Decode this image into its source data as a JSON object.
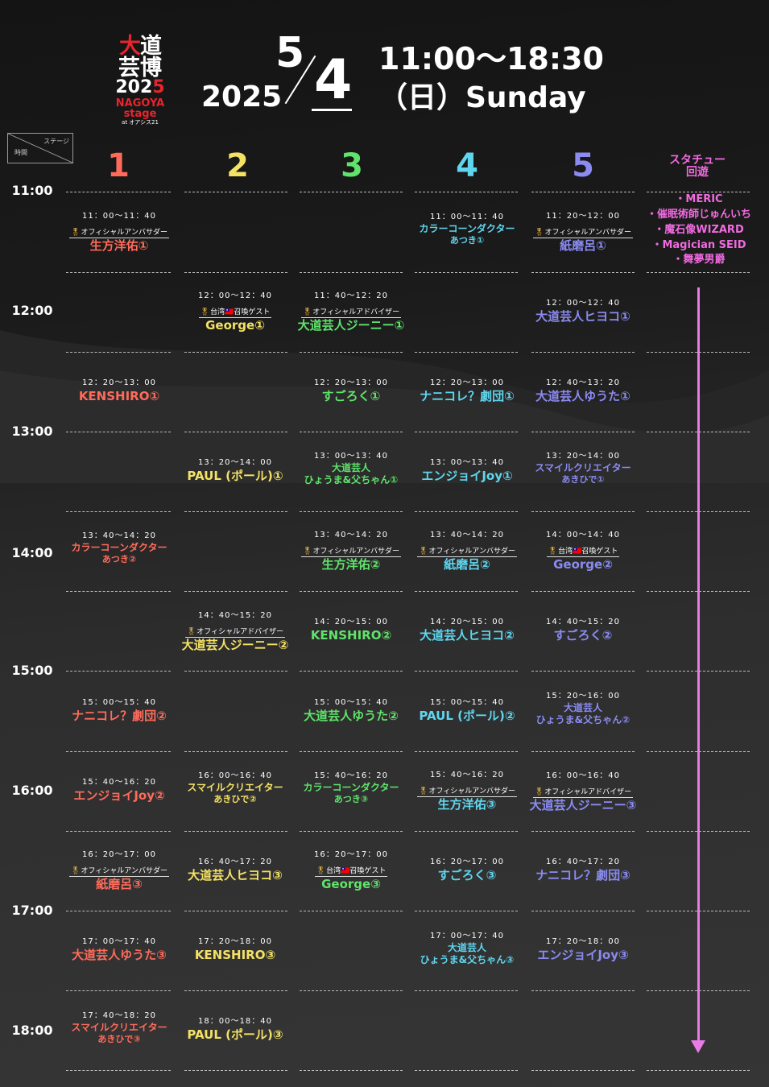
{
  "header": {
    "logo_line1_red": "大",
    "logo_line1_white": "道",
    "logo_line2": "芸博",
    "logo_line3_a": "202",
    "logo_line3_b": "5",
    "logo_line4": "NAGOYA stage",
    "logo_line5": "at オアシス21",
    "year": "2025",
    "month": "5",
    "day": "4",
    "hours": "11:00～18:30",
    "weekday": "（日）Sunday",
    "corner_stage": "ステージ",
    "corner_time": "時間"
  },
  "columns": [
    {
      "label": "1",
      "color": "#ff6b5b"
    },
    {
      "label": "2",
      "color": "#f4e265"
    },
    {
      "label": "3",
      "color": "#5fe36b"
    },
    {
      "label": "4",
      "color": "#5fd6ee"
    },
    {
      "label": "5",
      "color": "#8b8bf2"
    }
  ],
  "statue": {
    "title_line1": "スタチュー",
    "title_line2": "回遊",
    "items": [
      "・MERIC",
      "・催眠術師じゅんいち",
      "・魔石像WIZARD",
      "・Magician SEID",
      "・舞夢男爵"
    ],
    "color": "#f06be0"
  },
  "times": [
    "11:00",
    "12:00",
    "13:00",
    "14:00",
    "15:00",
    "16:00",
    "17:00",
    "18:00"
  ],
  "slots": {
    "c1": [
      {
        "time": "11：00～11：40",
        "tag": "オフィシャルアンバサダー",
        "name": "生方洋佑①"
      },
      {
        "time": "12：20～13：00",
        "name": "KENSHIRO①"
      },
      {
        "time": "13：40～14：20",
        "name": "カラーコーンダクター",
        "sub": "あつき②"
      },
      {
        "time": "15：00～15：40",
        "name": "ナニコレ？劇団②"
      },
      {
        "time": "15：40～16：20",
        "name": "エンジョイJoy②"
      },
      {
        "time": "16：20～17：00",
        "tag": "オフィシャルアンバサダー",
        "name": "紙磨呂③"
      },
      {
        "time": "17：00～17：40",
        "name": "大道芸人ゆうた③"
      },
      {
        "time": "17：40～18：20",
        "name": "スマイルクリエイター",
        "sub": "あきひで③"
      }
    ],
    "c2": [
      {
        "time": "12：00～12：40",
        "tag": "台湾🇹🇼召喚ゲスト",
        "name": "George①"
      },
      {
        "time": "13：20～14：00",
        "name": "PAUL (ポール)①"
      },
      {
        "time": "14：40～15：20",
        "tag": "オフィシャルアドバイザー",
        "name": "大道芸人ジーニー②"
      },
      {
        "time": "16：00～16：40",
        "name": "スマイルクリエイター",
        "sub": "あきひで②"
      },
      {
        "time": "16：40～17：20",
        "name": "大道芸人ヒヨコ③"
      },
      {
        "time": "17：20～18：00",
        "name": "KENSHIRO③"
      },
      {
        "time": "18：00～18：40",
        "name": "PAUL (ポール)③"
      }
    ],
    "c3": [
      {
        "time": "11：40～12：20",
        "tag": "オフィシャルアドバイザー",
        "name": "大道芸人ジーニー①"
      },
      {
        "time": "12：20～13：00",
        "name": "すごろく①"
      },
      {
        "time": "13：00～13：40",
        "name": "大道芸人",
        "name2": "ひょうま&父ちゃん①"
      },
      {
        "time": "13：40～14：20",
        "tag": "オフィシャルアンバサダー",
        "name": "生方洋佑②"
      },
      {
        "time": "14：20～15：00",
        "name": "KENSHIRO②"
      },
      {
        "time": "15：00～15：40",
        "name": "大道芸人ゆうた②"
      },
      {
        "time": "15：40～16：20",
        "name": "カラーコーンダクター",
        "sub": "あつき③"
      },
      {
        "time": "16：20～17：00",
        "tag": "台湾🇹🇼召喚ゲスト",
        "name": "George③"
      }
    ],
    "c4": [
      {
        "time": "11：00～11：40",
        "name": "カラーコーンダクター",
        "sub": "あつき①"
      },
      {
        "time": "12：20～13：00",
        "name": "ナニコレ？劇団①"
      },
      {
        "time": "13：00～13：40",
        "name": "エンジョイJoy①"
      },
      {
        "time": "13：40～14：20",
        "tag": "オフィシャルアンバサダー",
        "name": "紙磨呂②"
      },
      {
        "time": "14：20～15：00",
        "name": "大道芸人ヒヨコ②"
      },
      {
        "time": "15：00～15：40",
        "name": "PAUL (ポール)②"
      },
      {
        "time": "15：40～16：20",
        "tag": "オフィシャルアンバサダー",
        "name": "生方洋佑③"
      },
      {
        "time": "16：20～17：00",
        "name": "すごろく③"
      },
      {
        "time": "17：00～17：40",
        "name": "大道芸人",
        "name2": "ひょうま&父ちゃん③"
      }
    ],
    "c5": [
      {
        "time": "11：20～12：00",
        "tag": "オフィシャルアンバサダー",
        "name": "紙磨呂①"
      },
      {
        "time": "12：00～12：40",
        "name": "大道芸人ヒヨコ①"
      },
      {
        "time": "12：40～13：20",
        "name": "大道芸人ゆうた①"
      },
      {
        "time": "13：20～14：00",
        "name": "スマイルクリエイター",
        "sub": "あきひで①"
      },
      {
        "time": "14：00～14：40",
        "tag": "台湾🇹🇼召喚ゲスト",
        "name": "George②"
      },
      {
        "time": "14：40～15：20",
        "name": "すごろく②"
      },
      {
        "time": "15：20～16：00",
        "name": "大道芸人",
        "name2": "ひょうま&父ちゃん②"
      },
      {
        "time": "16：00～16：40",
        "tag": "オフィシャルアドバイザー",
        "name": "大道芸人ジーニー③"
      },
      {
        "time": "16：40～17：20",
        "name": "ナニコレ？劇団③"
      },
      {
        "time": "17：20～18：00",
        "name": "エンジョイJoy③"
      }
    ]
  }
}
